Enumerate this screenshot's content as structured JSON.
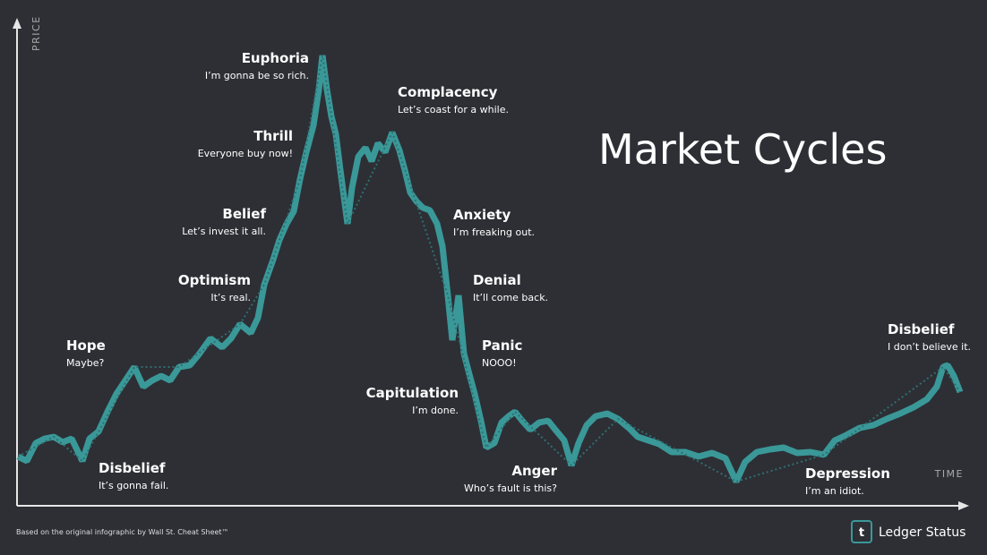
{
  "header": {
    "title": "Market Cycles"
  },
  "axes": {
    "y_label": "PRICE",
    "x_label": "TIME"
  },
  "stages": [
    {
      "name": "Disbelief",
      "quote": "It’s gonna fail."
    },
    {
      "name": "Hope",
      "quote": "Maybe?"
    },
    {
      "name": "Optimism",
      "quote": "It’s real."
    },
    {
      "name": "Belief",
      "quote": "Let’s invest it all."
    },
    {
      "name": "Thrill",
      "quote": "Everyone buy now!"
    },
    {
      "name": "Euphoria",
      "quote": "I’m gonna be so rich."
    },
    {
      "name": "Complacency",
      "quote": "Let’s coast for a while."
    },
    {
      "name": "Anxiety",
      "quote": "I’m freaking out."
    },
    {
      "name": "Denial",
      "quote": "It’ll come back."
    },
    {
      "name": "Panic",
      "quote": "NOOO!"
    },
    {
      "name": "Capitulation",
      "quote": "I’m done."
    },
    {
      "name": "Anger",
      "quote": "Who’s fault is this?"
    },
    {
      "name": "Depression",
      "quote": "I’m an idiot."
    },
    {
      "name": "Disbelief",
      "quote": "I don’t believe it."
    }
  ],
  "footer": {
    "credit": "Based on the original infographic by Wall St. Cheat Sheet™",
    "logo": "t",
    "brand": "Ledger Status"
  }
}
